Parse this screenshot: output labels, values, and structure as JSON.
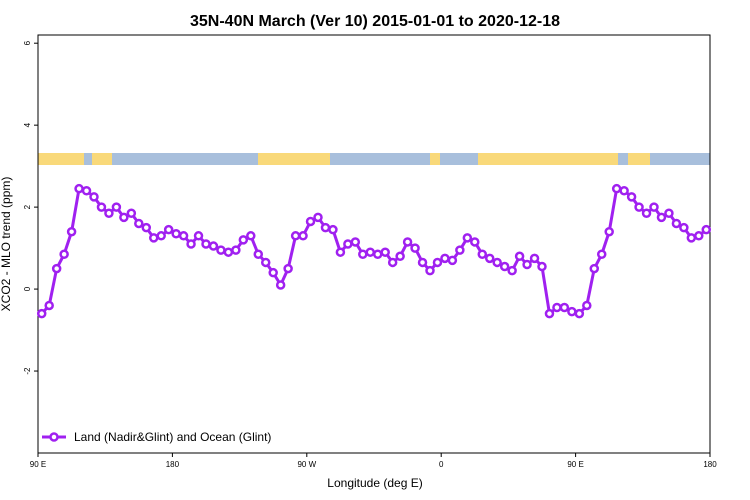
{
  "chart_data": {
    "type": "line",
    "title": "35N-40N March (Ver 10)   2015-01-01 to 2020-12-18",
    "xlabel": "Longitude (deg E)",
    "ylabel": "XCO2 - MLO trend (ppm)",
    "xlim": [
      90,
      540
    ],
    "ylim": [
      -4,
      6.2
    ],
    "xticks": [
      {
        "value": 90,
        "label": "90 E"
      },
      {
        "value": 180,
        "label": "180"
      },
      {
        "value": 270,
        "label": "90 W"
      },
      {
        "value": 360,
        "label": "0"
      },
      {
        "value": 450,
        "label": "90 E"
      },
      {
        "value": 540,
        "label": "180"
      }
    ],
    "yticks": [
      -2,
      0,
      2,
      4,
      6
    ],
    "legend": "bottom-left",
    "x": [
      92.5,
      97.5,
      102.5,
      107.5,
      112.5,
      117.5,
      122.5,
      127.5,
      132.5,
      137.5,
      142.5,
      147.5,
      152.5,
      157.5,
      162.5,
      167.5,
      172.5,
      177.5,
      182.5,
      187.5,
      192.5,
      197.5,
      202.5,
      207.5,
      212.5,
      217.5,
      222.5,
      227.5,
      232.5,
      237.5,
      242.5,
      247.5,
      252.5,
      257.5,
      262.5,
      267.5,
      272.5,
      277.5,
      282.5,
      287.5,
      292.5,
      297.5,
      302.5,
      307.5,
      312.5,
      317.5,
      322.5,
      327.5,
      332.5,
      337.5,
      342.5,
      347.5,
      352.5,
      357.5,
      362.5,
      367.5,
      372.5,
      377.5,
      382.5,
      387.5,
      392.5,
      397.5,
      402.5,
      407.5,
      412.5,
      417.5,
      422.5,
      427.5,
      432.5,
      437.5,
      442.5,
      447.5,
      452.5,
      457.5,
      462.5,
      467.5,
      472.5,
      477.5,
      482.5,
      487.5,
      492.5,
      497.5,
      502.5,
      507.5,
      512.5,
      517.5,
      522.5,
      527.5,
      532.5,
      537.5
    ],
    "series": [
      {
        "name": "Land (Nadir&Glint) and Ocean (Glint)",
        "color": "#a020f0",
        "values": [
          -0.6,
          -0.4,
          0.5,
          0.85,
          1.4,
          2.45,
          2.4,
          2.25,
          2.0,
          1.85,
          2.0,
          1.75,
          1.85,
          1.6,
          1.5,
          1.25,
          1.3,
          1.45,
          1.35,
          1.3,
          1.1,
          1.3,
          1.1,
          1.05,
          0.95,
          0.9,
          0.95,
          1.2,
          1.3,
          0.85,
          0.65,
          0.4,
          0.1,
          0.5,
          1.3,
          1.3,
          1.65,
          1.75,
          1.5,
          1.45,
          0.9,
          1.1,
          1.15,
          0.85,
          0.9,
          0.85,
          0.9,
          0.65,
          0.8,
          1.15,
          1.0,
          0.65,
          0.45,
          0.65,
          0.75,
          0.7,
          0.95,
          1.25,
          1.15,
          0.85,
          0.75,
          0.65,
          0.55,
          0.45,
          0.8,
          0.6,
          0.75,
          0.55,
          -0.6,
          -0.45,
          -0.45,
          -0.55,
          -0.6,
          -0.4,
          0.5,
          0.85,
          1.4,
          2.45,
          2.4,
          2.25,
          2.0,
          1.85,
          2.0,
          1.75,
          1.85,
          1.6,
          1.5,
          1.25,
          1.3,
          1.45
        ]
      }
    ]
  }
}
